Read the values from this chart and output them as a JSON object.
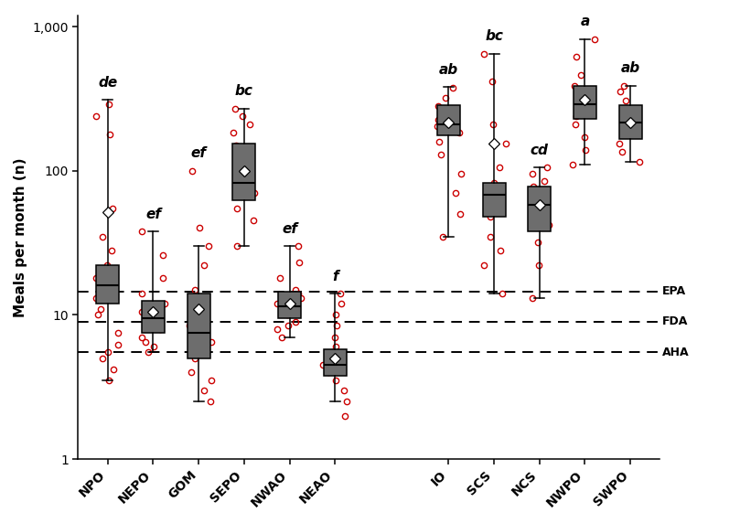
{
  "locations": [
    "NPO",
    "NEPO",
    "GOM",
    "SEPO",
    "NWAO",
    "NEAO",
    "IO",
    "SCS",
    "NCS",
    "NWPO",
    "SWPO"
  ],
  "ylabel": "Meals per month (n)",
  "hlines": [
    {
      "y": 14.5,
      "label": "EPA"
    },
    {
      "y": 9.0,
      "label": "FDA"
    },
    {
      "y": 5.5,
      "label": "AHA"
    }
  ],
  "annotations": {
    "NPO": "de",
    "NEPO": "ef",
    "GOM": "ef",
    "SEPO": "bc",
    "NWAO": "ef",
    "NEAO": "f",
    "IO": "ab",
    "SCS": "bc",
    "NCS": "cd",
    "NWPO": "a",
    "SWPO": "ab"
  },
  "boxes": {
    "NPO": {
      "whislo": 3.5,
      "q1": 12.0,
      "med": 16.0,
      "q3": 22.0,
      "whishi": 310.0,
      "mean": 52.0,
      "fliers": [
        3.5,
        4.2,
        5.0,
        5.5,
        6.2,
        7.5,
        10.0,
        11.0,
        13.0,
        15.0,
        18.0,
        22.0,
        28.0,
        35.0,
        55.0,
        180.0,
        240.0,
        290.0
      ]
    },
    "NEPO": {
      "whislo": 5.5,
      "q1": 7.5,
      "med": 9.5,
      "q3": 12.5,
      "whishi": 38.0,
      "mean": 10.5,
      "fliers": [
        5.5,
        6.0,
        6.5,
        7.0,
        8.0,
        8.5,
        9.0,
        10.0,
        10.5,
        11.5,
        12.0,
        14.0,
        18.0,
        26.0,
        38.0
      ]
    },
    "GOM": {
      "whislo": 2.5,
      "q1": 5.0,
      "med": 7.5,
      "q3": 14.0,
      "whishi": 30.0,
      "mean": 11.0,
      "fliers": [
        2.5,
        3.0,
        3.5,
        4.0,
        5.0,
        5.5,
        6.5,
        7.0,
        8.5,
        10.0,
        12.0,
        15.0,
        22.0,
        30.0,
        40.0,
        100.0
      ]
    },
    "SEPO": {
      "whislo": 30.0,
      "q1": 62.0,
      "med": 82.0,
      "q3": 155.0,
      "whishi": 270.0,
      "mean": 100.0,
      "fliers": [
        30.0,
        45.0,
        55.0,
        70.0,
        82.0,
        95.0,
        105.0,
        115.0,
        125.0,
        150.0,
        185.0,
        210.0,
        240.0,
        270.0
      ]
    },
    "NWAO": {
      "whislo": 7.0,
      "q1": 9.5,
      "med": 11.5,
      "q3": 14.5,
      "whishi": 30.0,
      "mean": 12.0,
      "fliers": [
        7.0,
        8.0,
        8.5,
        9.0,
        10.0,
        11.0,
        12.0,
        12.5,
        13.0,
        14.0,
        15.0,
        18.0,
        23.0,
        30.0
      ]
    },
    "NEAO": {
      "whislo": 2.5,
      "q1": 3.8,
      "med": 4.5,
      "q3": 5.8,
      "whishi": 14.0,
      "mean": 5.0,
      "fliers": [
        2.0,
        2.5,
        3.0,
        3.5,
        4.0,
        4.5,
        5.0,
        5.5,
        6.0,
        7.0,
        8.5,
        10.0,
        12.0,
        14.0
      ]
    },
    "IO": {
      "whislo": 35.0,
      "q1": 175.0,
      "med": 210.0,
      "q3": 285.0,
      "whishi": 380.0,
      "mean": 215.0,
      "fliers": [
        35.0,
        50.0,
        70.0,
        95.0,
        130.0,
        160.0,
        185.0,
        205.0,
        225.0,
        255.0,
        280.0,
        320.0,
        375.0
      ]
    },
    "SCS": {
      "whislo": 14.0,
      "q1": 48.0,
      "med": 68.0,
      "q3": 82.0,
      "whishi": 650.0,
      "mean": 155.0,
      "fliers": [
        14.0,
        22.0,
        28.0,
        35.0,
        48.0,
        55.0,
        68.0,
        72.0,
        82.0,
        105.0,
        155.0,
        210.0,
        420.0,
        650.0
      ]
    },
    "NCS": {
      "whislo": 13.0,
      "q1": 38.0,
      "med": 58.0,
      "q3": 78.0,
      "whishi": 105.0,
      "mean": 58.0,
      "fliers": [
        13.0,
        22.0,
        32.0,
        42.0,
        58.0,
        68.0,
        78.0,
        85.0,
        95.0,
        105.0
      ]
    },
    "NWPO": {
      "whislo": 110.0,
      "q1": 230.0,
      "med": 290.0,
      "q3": 385.0,
      "whishi": 820.0,
      "mean": 310.0,
      "fliers": [
        110.0,
        140.0,
        170.0,
        210.0,
        240.0,
        275.0,
        310.0,
        350.0,
        390.0,
        460.0,
        620.0,
        820.0
      ]
    },
    "SWPO": {
      "whislo": 115.0,
      "q1": 165.0,
      "med": 215.0,
      "q3": 285.0,
      "whishi": 390.0,
      "mean": 215.0,
      "fliers": [
        115.0,
        135.0,
        155.0,
        180.0,
        205.0,
        235.0,
        265.0,
        305.0,
        355.0,
        390.0
      ]
    }
  },
  "jitter_seeds": [
    3,
    17,
    24,
    5,
    11,
    8,
    31,
    44,
    22,
    9,
    15
  ],
  "box_facecolor": "#6d6d6d",
  "jitter_color": "#cc0000",
  "mean_color": "white",
  "ann_fontsize": 11,
  "figsize": [
    8.09,
    5.72
  ],
  "dpi": 100
}
